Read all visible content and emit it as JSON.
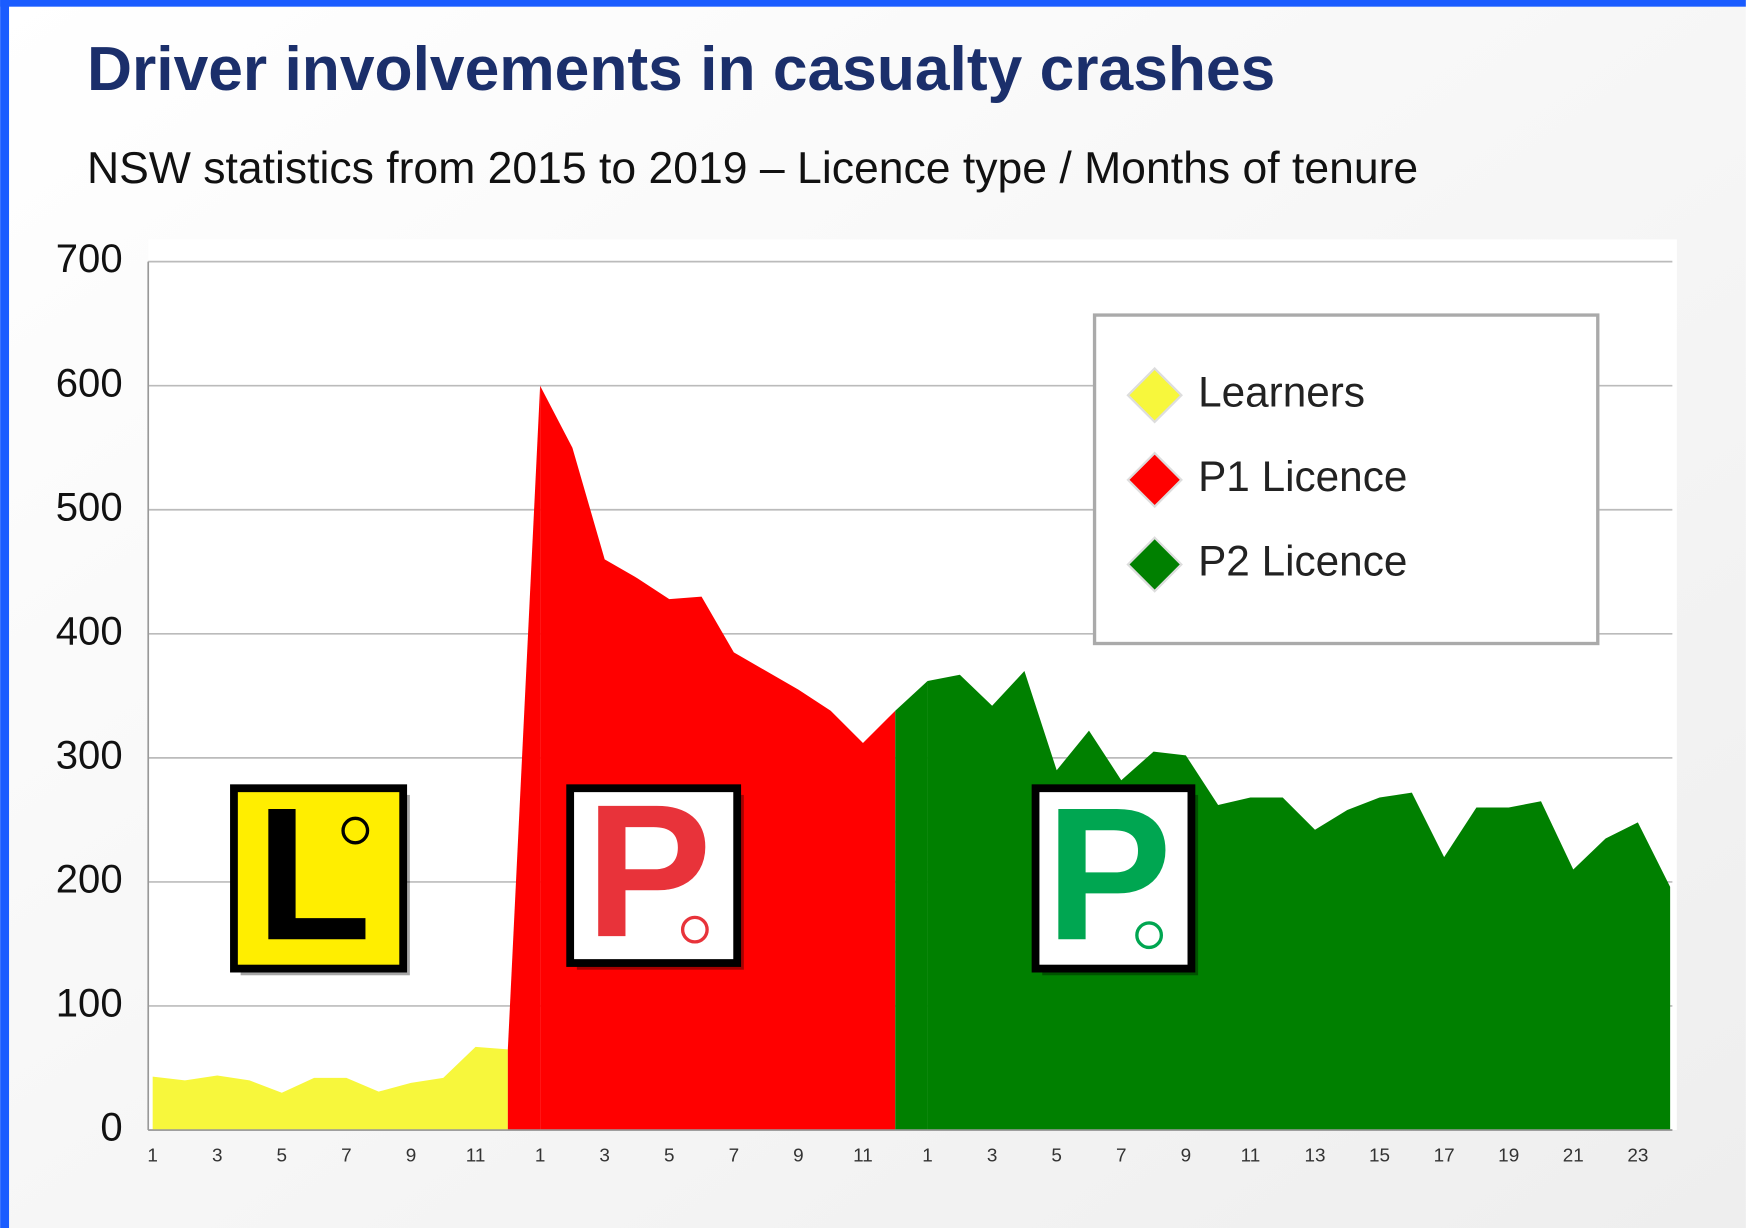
{
  "chart_data": {
    "type": "area",
    "title": "Driver involvements in casualty crashes",
    "subtitle": "NSW statistics from 2015 to 2019 – Licence type / Months of tenure",
    "categories": [
      "1",
      null,
      "3",
      null,
      "5",
      null,
      "7",
      null,
      "9",
      null,
      "11",
      null,
      "1",
      null,
      "3",
      null,
      "5",
      null,
      "7",
      null,
      "9",
      null,
      "11",
      null,
      "1",
      null,
      "3",
      null,
      "5",
      null,
      "7",
      null,
      "9",
      null,
      "11",
      null,
      "13",
      null,
      "15",
      null,
      "17",
      null,
      "19",
      null,
      "21",
      null,
      "23",
      null
    ],
    "series": [
      {
        "name": "Learners",
        "color": "#f7f73c",
        "values": [
          43,
          40,
          44,
          40,
          30,
          42,
          42,
          31,
          38,
          42,
          67,
          65,
          null,
          null,
          null,
          null,
          null,
          null,
          null,
          null,
          null,
          null,
          null,
          null,
          null,
          null,
          null,
          null,
          null,
          null,
          null,
          null,
          null,
          null,
          null,
          null,
          null,
          null,
          null,
          null,
          null,
          null,
          null,
          null,
          null,
          null,
          null,
          null
        ]
      },
      {
        "name": "P1 Licence",
        "color": "#ff0000",
        "values": [
          null,
          null,
          null,
          null,
          null,
          null,
          null,
          null,
          null,
          null,
          null,
          null,
          600,
          550,
          460,
          445,
          428,
          430,
          385,
          370,
          355,
          338,
          312,
          338,
          null,
          null,
          null,
          null,
          null,
          null,
          null,
          null,
          null,
          null,
          null,
          null,
          null,
          null,
          null,
          null,
          null,
          null,
          null,
          null,
          null,
          null,
          null,
          null
        ]
      },
      {
        "name": "P2 Licence",
        "color": "#008000",
        "values": [
          null,
          null,
          null,
          null,
          null,
          null,
          null,
          null,
          null,
          null,
          null,
          null,
          null,
          null,
          null,
          null,
          null,
          null,
          null,
          null,
          null,
          null,
          null,
          null,
          362,
          367,
          342,
          370,
          290,
          322,
          282,
          305,
          302,
          262,
          268,
          268,
          242,
          258,
          268,
          272,
          220,
          260,
          260,
          265,
          210,
          235,
          248,
          196
        ]
      }
    ],
    "annotations": [
      "L",
      "P",
      "P"
    ],
    "ylim": [
      0,
      700
    ],
    "yticks": [
      0,
      100,
      200,
      300,
      400,
      500,
      600,
      700
    ],
    "grid": true,
    "legend": "top-right"
  }
}
